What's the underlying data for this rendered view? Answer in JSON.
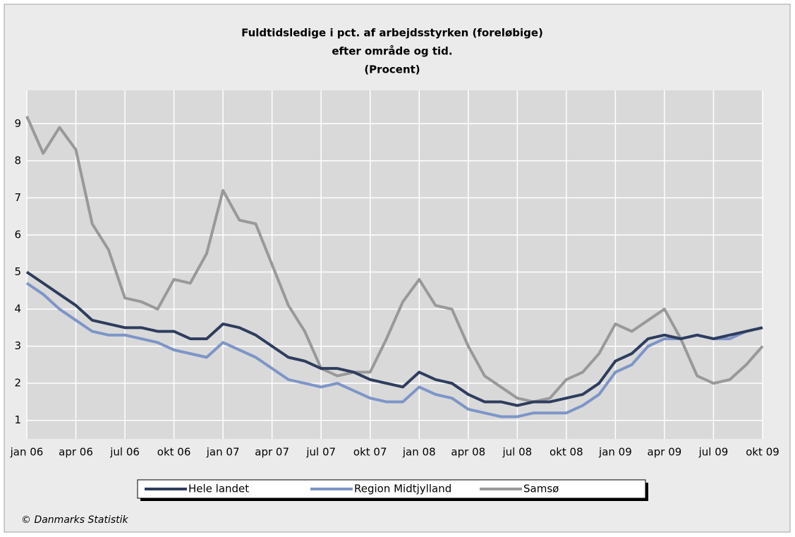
{
  "chart_data": {
    "type": "line",
    "title": [
      "Fuldtidsledige i pct. af arbejdsstyrken (foreløbige)",
      "efter område og tid.",
      "(Procent)"
    ],
    "categories": [
      "jan 06",
      null,
      null,
      "apr 06",
      null,
      null,
      "jul 06",
      null,
      null,
      "okt 06",
      null,
      null,
      "jan 07",
      null,
      null,
      "apr 07",
      null,
      null,
      "jul 07",
      null,
      null,
      "okt 07",
      null,
      null,
      "jan 08",
      null,
      null,
      "apr 08",
      null,
      null,
      "jul 08",
      null,
      null,
      "okt 08",
      null,
      null,
      "jan 09",
      null,
      null,
      "apr 09",
      null,
      null,
      "jul 09",
      null,
      null,
      "okt 09"
    ],
    "series": [
      {
        "name": "Hele landet",
        "color": "#2e3d5e",
        "values": [
          5.0,
          4.7,
          4.4,
          4.1,
          3.7,
          3.6,
          3.5,
          3.5,
          3.4,
          3.4,
          3.2,
          3.2,
          3.6,
          3.5,
          3.3,
          3.0,
          2.7,
          2.6,
          2.4,
          2.4,
          2.3,
          2.1,
          2.0,
          1.9,
          2.3,
          2.1,
          2.0,
          1.7,
          1.5,
          1.5,
          1.4,
          1.5,
          1.5,
          1.6,
          1.7,
          2.0,
          2.6,
          2.8,
          3.2,
          3.3,
          3.2,
          3.3,
          3.2,
          3.3,
          3.4,
          3.5
        ]
      },
      {
        "name": "Region Midtjylland",
        "color": "#7d95c8",
        "values": [
          4.7,
          4.4,
          4.0,
          3.7,
          3.4,
          3.3,
          3.3,
          3.2,
          3.1,
          2.9,
          2.8,
          2.7,
          3.1,
          2.9,
          2.7,
          2.4,
          2.1,
          2.0,
          1.9,
          2.0,
          1.8,
          1.6,
          1.5,
          1.5,
          1.9,
          1.7,
          1.6,
          1.3,
          1.2,
          1.1,
          1.1,
          1.2,
          1.2,
          1.2,
          1.4,
          1.7,
          2.3,
          2.5,
          3.0,
          3.2,
          3.2,
          3.3,
          3.2,
          3.2,
          3.4,
          3.5
        ]
      },
      {
        "name": "Samsø",
        "color": "#999999",
        "values": [
          9.2,
          8.2,
          8.9,
          8.3,
          6.3,
          5.6,
          4.3,
          4.2,
          4.0,
          4.8,
          4.7,
          5.5,
          7.2,
          6.4,
          6.3,
          5.2,
          4.1,
          3.4,
          2.4,
          2.2,
          2.3,
          2.3,
          3.2,
          4.2,
          4.8,
          4.1,
          4.0,
          3.0,
          2.2,
          1.9,
          1.6,
          1.5,
          1.6,
          2.1,
          2.3,
          2.8,
          3.6,
          3.4,
          3.7,
          4.0,
          3.2,
          2.2,
          2.0,
          2.1,
          2.5,
          3.0
        ]
      }
    ],
    "ylim": [
      0.5,
      9.9
    ],
    "yticks": [
      1,
      2,
      3,
      4,
      5,
      6,
      7,
      8,
      9
    ],
    "grid": true,
    "legend": "bottom",
    "footer": "© Danmarks Statistik"
  }
}
